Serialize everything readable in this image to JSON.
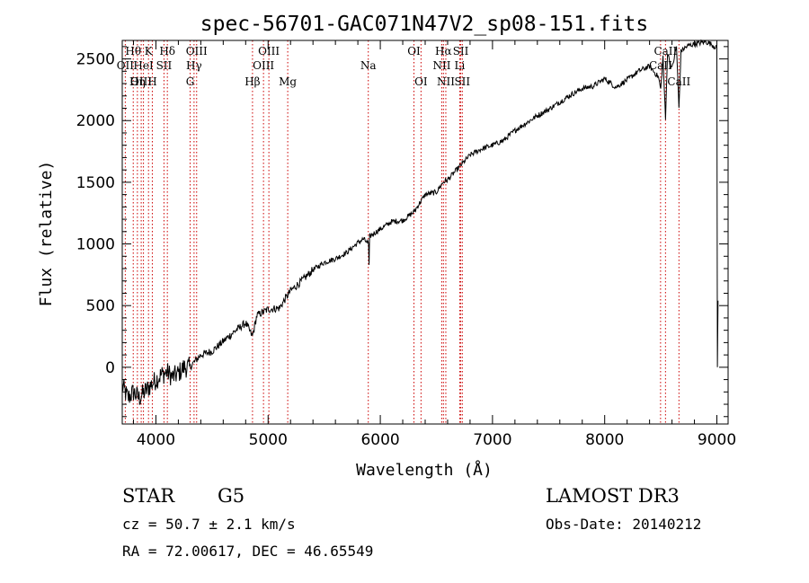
{
  "chart_data": {
    "type": "line",
    "title": "spec-56701-GAC071N47V2_sp08-151.fits",
    "xlabel": "Wavelength (Å)",
    "ylabel": "Flux (relative)",
    "xlim": [
      3700,
      9100
    ],
    "ylim": [
      -460,
      2650
    ],
    "x_ticks": [
      4000,
      5000,
      6000,
      7000,
      8000,
      9000
    ],
    "y_ticks": [
      0,
      500,
      1000,
      1500,
      2000,
      2500
    ],
    "series": [
      {
        "name": "flux",
        "x": [
          3700,
          3750,
          3800,
          3850,
          3900,
          3950,
          4000,
          4050,
          4100,
          4150,
          4200,
          4250,
          4300,
          4350,
          4400,
          4500,
          4600,
          4700,
          4800,
          4860,
          4900,
          5000,
          5100,
          5200,
          5300,
          5400,
          5500,
          5600,
          5700,
          5800,
          5850,
          5895,
          5900,
          5905,
          5950,
          6000,
          6100,
          6200,
          6300,
          6400,
          6500,
          6560,
          6600,
          6700,
          6800,
          6900,
          7000,
          7100,
          7200,
          7300,
          7400,
          7500,
          7600,
          7700,
          7800,
          7900,
          8000,
          8100,
          8200,
          8300,
          8400,
          8480,
          8500,
          8520,
          8542,
          8560,
          8600,
          8640,
          8662,
          8680,
          8700,
          8750,
          8800,
          8850,
          8900,
          8950,
          8980,
          9000,
          9005,
          9010
        ],
        "y": [
          -150,
          -250,
          -200,
          -250,
          -200,
          -150,
          -100,
          -60,
          -40,
          -80,
          -50,
          0,
          0,
          50,
          100,
          130,
          210,
          290,
          360,
          250,
          420,
          470,
          480,
          620,
          700,
          790,
          850,
          880,
          930,
          1010,
          1040,
          1000,
          830,
          1060,
          1090,
          1120,
          1180,
          1190,
          1260,
          1400,
          1420,
          1500,
          1520,
          1620,
          1720,
          1770,
          1800,
          1840,
          1920,
          1980,
          2040,
          2090,
          2150,
          2210,
          2260,
          2280,
          2340,
          2270,
          2330,
          2400,
          2440,
          2350,
          2250,
          2520,
          2000,
          2550,
          2420,
          2600,
          2100,
          2560,
          2580,
          2610,
          2620,
          2630,
          2640,
          2620,
          2600,
          2590,
          0,
          540
        ]
      }
    ],
    "spectral_lines": [
      {
        "label": "Hθ",
        "wavelength": 3798,
        "row": 1
      },
      {
        "label": "OII",
        "wavelength": 3727,
        "row": 2
      },
      {
        "label": "OIII",
        "wavelength": 3869,
        "row": 3
      },
      {
        "label": "K",
        "wavelength": 3934,
        "row": 1
      },
      {
        "label": "HeI",
        "wavelength": 3889,
        "row": 2
      },
      {
        "label": "Hη",
        "wavelength": 3835,
        "row": 3
      },
      {
        "label": "Hδ",
        "wavelength": 4102,
        "row": 1
      },
      {
        "label": "SII",
        "wavelength": 4072,
        "row": 2
      },
      {
        "label": "H",
        "wavelength": 3968,
        "row": 3
      },
      {
        "label": "OIII",
        "wavelength": 4363,
        "row": 1
      },
      {
        "label": "Hγ",
        "wavelength": 4340,
        "row": 2
      },
      {
        "label": "G",
        "wavelength": 4305,
        "row": 3
      },
      {
        "label": "OIII",
        "wavelength": 5007,
        "row": 1
      },
      {
        "label": "OIII",
        "wavelength": 4959,
        "row": 2
      },
      {
        "label": "Hβ",
        "wavelength": 4861,
        "row": 3
      },
      {
        "label": "Mg",
        "wavelength": 5175,
        "row": 3
      },
      {
        "label": "Na",
        "wavelength": 5893,
        "row": 2
      },
      {
        "label": "OI",
        "wavelength": 6300,
        "row": 1
      },
      {
        "label": "OI",
        "wavelength": 6363,
        "row": 3
      },
      {
        "label": "Hα",
        "wavelength": 6563,
        "row": 1
      },
      {
        "label": "NII",
        "wavelength": 6548,
        "row": 2
      },
      {
        "label": "NII",
        "wavelength": 6584,
        "row": 3
      },
      {
        "label": "SII",
        "wavelength": 6717,
        "row": 1
      },
      {
        "label": "Li",
        "wavelength": 6708,
        "row": 2
      },
      {
        "label": "SII",
        "wavelength": 6731,
        "row": 3
      },
      {
        "label": "CaII",
        "wavelength": 8542,
        "row": 1
      },
      {
        "label": "CaII",
        "wavelength": 8498,
        "row": 2
      },
      {
        "label": "CaII",
        "wavelength": 8662,
        "row": 3
      }
    ],
    "line_color": "#cc0000",
    "trace_color": "#000000"
  },
  "info": {
    "object_class": "STAR",
    "subclass": "G5",
    "cz": "cz = 50.7 ± 2.1 km/s",
    "coords": "RA =  72.00617, DEC =  46.65549",
    "survey": "LAMOST DR3",
    "obs_date": "Obs-Date: 20140212"
  }
}
